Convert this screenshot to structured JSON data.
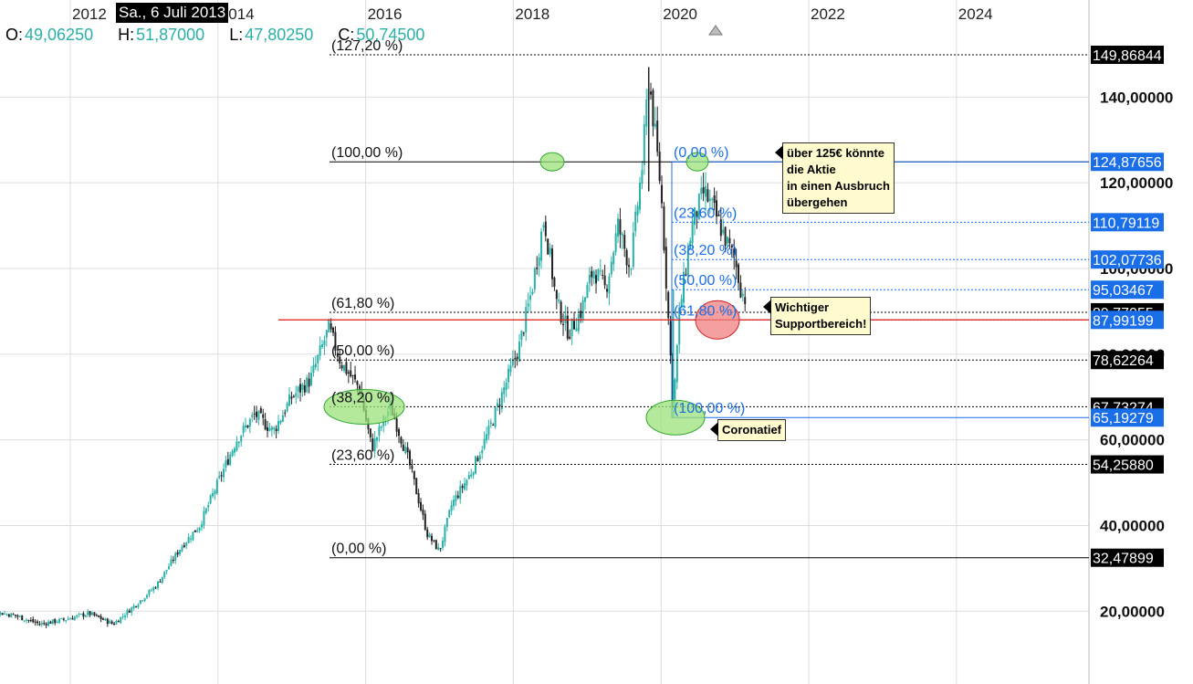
{
  "header": {
    "crosshair_date": "Sa., 6 Juli 2013",
    "ohlc": [
      {
        "key": "O:",
        "value": "49,06250"
      },
      {
        "key": "H:",
        "value": "51,87000"
      },
      {
        "key": "L:",
        "value": "47,80250"
      },
      {
        "key": "C:",
        "value": "50,74500"
      }
    ]
  },
  "colors": {
    "up": "#2ab0a8",
    "down": "#222222",
    "grid": "#dddddd",
    "fib_black": "#000000",
    "fib_blue": "#1a6ee8",
    "support_red": "#e01818",
    "ellipse_green": "#9be07a",
    "ellipse_red": "#f08080",
    "note_bg": "#fffbcf"
  },
  "chart_data": {
    "type": "candlestick",
    "x_ticks": [
      "2012",
      "2014",
      "2016",
      "2018",
      "2020",
      "2022",
      "2024"
    ],
    "y_ticks": [
      "20,00000",
      "40,00000",
      "60,00000",
      "80,00000",
      "100,00000",
      "120,00000",
      "140,00000"
    ],
    "ylim": [
      5,
      155
    ],
    "grid": true,
    "price_series": [
      [
        "2010-04",
        18
      ],
      [
        "2010-08",
        19.5
      ],
      [
        "2010-12",
        20
      ],
      [
        "2011-04",
        19
      ],
      [
        "2011-08",
        17
      ],
      [
        "2011-12",
        18
      ],
      [
        "2012-04",
        19.5
      ],
      [
        "2012-08",
        17
      ],
      [
        "2012-12",
        22
      ],
      [
        "2013-03",
        26
      ],
      [
        "2013-07",
        35
      ],
      [
        "2013-10",
        40
      ],
      [
        "2014-01",
        50
      ],
      [
        "2014-04",
        60
      ],
      [
        "2014-07",
        66
      ],
      [
        "2014-10",
        62
      ],
      [
        "2015-01",
        70
      ],
      [
        "2015-04",
        74
      ],
      [
        "2015-07",
        86
      ],
      [
        "2015-09",
        78
      ],
      [
        "2015-12",
        72
      ],
      [
        "2016-02",
        58
      ],
      [
        "2016-05",
        68
      ],
      [
        "2016-08",
        55
      ],
      [
        "2016-11",
        38
      ],
      [
        "2017-01",
        34
      ],
      [
        "2017-03",
        45
      ],
      [
        "2017-06",
        52
      ],
      [
        "2017-09",
        62
      ],
      [
        "2017-11",
        70
      ],
      [
        "2018-02",
        82
      ],
      [
        "2018-04",
        95
      ],
      [
        "2018-06",
        112
      ],
      [
        "2018-08",
        92
      ],
      [
        "2018-10",
        85
      ],
      [
        "2018-12",
        90
      ],
      [
        "2019-02",
        100
      ],
      [
        "2019-04",
        95
      ],
      [
        "2019-06",
        110
      ],
      [
        "2019-08",
        100
      ],
      [
        "2019-10",
        125
      ],
      [
        "2019-11",
        145
      ],
      [
        "2020-01",
        118
      ],
      [
        "2020-03",
        68
      ],
      [
        "2020-04",
        90
      ],
      [
        "2020-06",
        110
      ],
      [
        "2020-08",
        118
      ],
      [
        "2020-10",
        112
      ],
      [
        "2020-12",
        105
      ],
      [
        "2021-01",
        102
      ],
      [
        "2021-02",
        95
      ],
      [
        "2021-03",
        92
      ]
    ],
    "fib_black": {
      "anchor_high": 124.87656,
      "anchor_low": 32.47899,
      "levels": [
        {
          "label": "(127,20 %)",
          "price": 149.86844
        },
        {
          "label": "(100,00 %)",
          "price": 124.87656
        },
        {
          "label": "(61,80 %)",
          "price": 89.77
        },
        {
          "label": "(50,00 %)",
          "price": 78.62264
        },
        {
          "label": "(38,20 %)",
          "price": 67.73
        },
        {
          "label": "(23,60 %)",
          "price": 54.2588
        },
        {
          "label": "(0,00 %)",
          "price": 32.47899
        }
      ]
    },
    "fib_blue": {
      "anchor_high": 124.87656,
      "anchor_low": 65.19279,
      "levels": [
        {
          "label": "(0,00 %)",
          "price": 124.87656
        },
        {
          "label": "(23,60 %)",
          "price": 110.79119
        },
        {
          "label": "(38,20 %)",
          "price": 102.07736
        },
        {
          "label": "(50,00 %)",
          "price": 95.03467
        },
        {
          "label": "(61,80 %)",
          "price": 87.99199
        },
        {
          "label": "(100,00 %)",
          "price": 65.19279
        }
      ]
    },
    "support_line": 87.99199,
    "price_labels": [
      {
        "text": "149,86844",
        "price": 149.86844,
        "color": "black"
      },
      {
        "text": "124,87656",
        "price": 124.87656,
        "color": "blue"
      },
      {
        "text": "110,79119",
        "price": 110.79119,
        "color": "blue"
      },
      {
        "text": "102,07736",
        "price": 102.07736,
        "color": "blue"
      },
      {
        "text": "95,03467",
        "price": 95.03467,
        "color": "blue"
      },
      {
        "text": "89,77055",
        "price": 89.77,
        "color": "black"
      },
      {
        "text": "87,99199",
        "price": 87.99199,
        "color": "blue"
      },
      {
        "text": "78,62264",
        "price": 78.62264,
        "color": "black"
      },
      {
        "text": "67,73274",
        "price": 67.73,
        "color": "black"
      },
      {
        "text": "65,19279",
        "price": 65.19279,
        "color": "blue"
      },
      {
        "text": "54,25880",
        "price": 54.2588,
        "color": "black"
      },
      {
        "text": "32,47899",
        "price": 32.47899,
        "color": "black"
      }
    ],
    "annotations": [
      "über 125€ könnte die Aktie in einen Ausbruch übergehen",
      "Wichtiger Supportbereich!",
      "Coronatief"
    ]
  },
  "notes": {
    "breakout": [
      "über 125€ könnte",
      "die Aktie",
      "in einen Ausbruch",
      "übergehen"
    ],
    "support": [
      "Wichtiger",
      "Supportbereich!"
    ],
    "corona": "Coronatief"
  }
}
